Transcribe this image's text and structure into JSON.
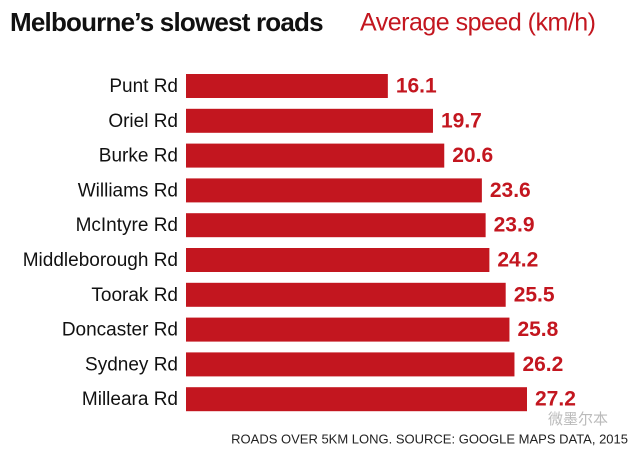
{
  "chart_data": {
    "type": "bar",
    "orientation": "horizontal",
    "title": "Melbourne’s slowest roads",
    "subtitle": "Average speed (km/h)",
    "categories": [
      "Punt Rd",
      "Oriel Rd",
      "Burke Rd",
      "Williams Rd",
      "McIntyre Rd",
      "Middleborough Rd",
      "Toorak Rd",
      "Doncaster Rd",
      "Sydney Rd",
      "Milleara Rd"
    ],
    "values": [
      16.1,
      19.7,
      20.6,
      23.6,
      23.9,
      24.2,
      25.5,
      25.8,
      26.2,
      27.2
    ],
    "color": "#c3161f",
    "footnote": "ROADS OVER 5KM LONG. SOURCE: GOOGLE MAPS DATA, 2015",
    "watermark": "微墨尔本"
  }
}
